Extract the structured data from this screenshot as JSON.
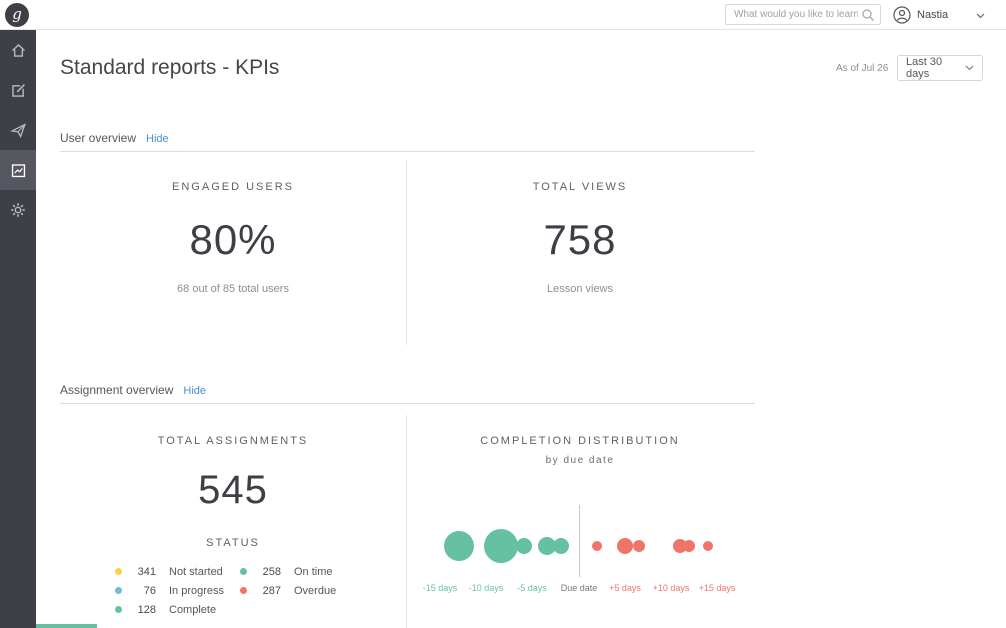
{
  "brand": {
    "logo_letter": "g"
  },
  "header": {
    "search_placeholder": "What would you like to learn?",
    "user_name": "Nastia"
  },
  "sidebar": {
    "items": [
      {
        "id": "home"
      },
      {
        "id": "compose"
      },
      {
        "id": "share"
      },
      {
        "id": "reports"
      },
      {
        "id": "settings"
      }
    ],
    "active": "reports"
  },
  "page": {
    "title": "Standard reports - KPIs",
    "as_of": "As of Jul 26",
    "date_range": "Last 30 days"
  },
  "user_overview": {
    "heading": "User overview",
    "hide_label": "Hide",
    "engaged_users": {
      "label": "ENGAGED USERS",
      "value": "80%",
      "caption": "68 out of 85 total users"
    },
    "total_views": {
      "label": "TOTAL VIEWS",
      "value": "758",
      "caption": "Lesson views"
    }
  },
  "assignment_overview": {
    "heading": "Assignment overview",
    "hide_label": "Hide",
    "total_assignments": {
      "label": "TOTAL ASSIGNMENTS",
      "value": "545"
    },
    "status": {
      "label": "STATUS",
      "columns": [
        [
          {
            "value": "341",
            "label": "Not started",
            "color": "#f7d148"
          },
          {
            "value": "76",
            "label": "In progress",
            "color": "#6fb8de"
          },
          {
            "value": "128",
            "label": "Complete",
            "color": "#65c1a1"
          }
        ],
        [
          {
            "value": "258",
            "label": "On time",
            "color": "#65c1a1"
          },
          {
            "value": "287",
            "label": "Overdue",
            "color": "#f0746a"
          }
        ]
      ]
    }
  },
  "chart_data": {
    "type": "scatter",
    "title": "COMPLETION DISTRIBUTION",
    "subtitle": "by due date",
    "xlabel_ticks": [
      "-15 days",
      "-10 days",
      "-5 days",
      "Due date",
      "+5 days",
      "+10 days",
      "+15 days"
    ],
    "x_unit": "days relative to due date",
    "tick_colors": {
      "negative": "#6cc0a0",
      "due": "#77777e",
      "positive": "#ef746b"
    },
    "series": [
      {
        "name": "on-time",
        "color": "#65c1a1",
        "points": [
          {
            "days": -13,
            "size": 15
          },
          {
            "days": -8.5,
            "size": 17
          },
          {
            "days": -6,
            "size": 8
          },
          {
            "days": -3.5,
            "size": 9
          },
          {
            "days": -2,
            "size": 8
          }
        ]
      },
      {
        "name": "overdue",
        "color": "#f0746a",
        "points": [
          {
            "days": 2,
            "size": 5
          },
          {
            "days": 5,
            "size": 8
          },
          {
            "days": 6.5,
            "size": 6
          },
          {
            "days": 11,
            "size": 7
          },
          {
            "days": 12,
            "size": 6
          },
          {
            "days": 14,
            "size": 5
          }
        ]
      }
    ]
  }
}
